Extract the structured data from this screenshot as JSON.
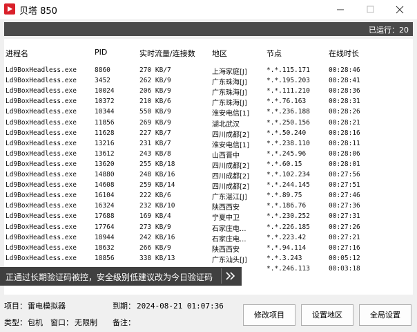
{
  "window": {
    "title": "贝塔 850"
  },
  "status": {
    "running": "已运行：20"
  },
  "table": {
    "headers": [
      "进程名",
      "PID",
      "实时流量/连接数",
      "地区",
      "节点",
      "在线时长"
    ],
    "rows": [
      {
        "name": "Ld9BoxHeadless.exe",
        "pid": "8860",
        "flow": "270 KB/7",
        "region": "上海家庭[J]",
        "node": "*.*.115.171",
        "time": "00:28:46"
      },
      {
        "name": "Ld9BoxHeadless.exe",
        "pid": "3452",
        "flow": "262 KB/9",
        "region": "广东珠海[J]",
        "node": "*.*.195.203",
        "time": "00:28:41"
      },
      {
        "name": "Ld9BoxHeadless.exe",
        "pid": "10024",
        "flow": "206 KB/9",
        "region": "广东珠海[J]",
        "node": "*.*.111.210",
        "time": "00:28:36"
      },
      {
        "name": "Ld9BoxHeadless.exe",
        "pid": "10372",
        "flow": "210 KB/6",
        "region": "广东珠海[J]",
        "node": "*.*.76.163",
        "time": "00:28:31"
      },
      {
        "name": "Ld9BoxHeadless.exe",
        "pid": "10344",
        "flow": "550 KB/9",
        "region": "淮安电信[1]",
        "node": "*.*.236.188",
        "time": "00:28:26"
      },
      {
        "name": "Ld9BoxHeadless.exe",
        "pid": "11856",
        "flow": "269 KB/9",
        "region": "湖北武汉",
        "node": "*.*.250.156",
        "time": "00:28:21"
      },
      {
        "name": "Ld9BoxHeadless.exe",
        "pid": "11628",
        "flow": "227 KB/7",
        "region": "四川成都[2]",
        "node": "*.*.50.240",
        "time": "00:28:16"
      },
      {
        "name": "Ld9BoxHeadless.exe",
        "pid": "13216",
        "flow": "231 KB/7",
        "region": "淮安电信[1]",
        "node": "*.*.238.110",
        "time": "00:28:11"
      },
      {
        "name": "Ld9BoxHeadless.exe",
        "pid": "13612",
        "flow": "243 KB/8",
        "region": "山西晋中",
        "node": "*.*.245.96",
        "time": "00:28:06"
      },
      {
        "name": "Ld9BoxHeadless.exe",
        "pid": "13620",
        "flow": "255 KB/18",
        "region": "四川成都[2]",
        "node": "*.*.60.15",
        "time": "00:28:01"
      },
      {
        "name": "Ld9BoxHeadless.exe",
        "pid": "14880",
        "flow": "248 KB/16",
        "region": "四川成都[2]",
        "node": "*.*.102.234",
        "time": "00:27:56"
      },
      {
        "name": "Ld9BoxHeadless.exe",
        "pid": "14608",
        "flow": "259 KB/14",
        "region": "四川成都[2]",
        "node": "*.*.244.145",
        "time": "00:27:51"
      },
      {
        "name": "Ld9BoxHeadless.exe",
        "pid": "16104",
        "flow": "222 KB/6",
        "region": "广东湛江[J]",
        "node": "*.*.89.75",
        "time": "00:27:46"
      },
      {
        "name": "Ld9BoxHeadless.exe",
        "pid": "16324",
        "flow": "232 KB/10",
        "region": "陕西西安",
        "node": "*.*.186.76",
        "time": "00:27:36"
      },
      {
        "name": "Ld9BoxHeadless.exe",
        "pid": "17688",
        "flow": "169 KB/4",
        "region": "宁夏中卫",
        "node": "*.*.230.252",
        "time": "00:27:31"
      },
      {
        "name": "Ld9BoxHeadless.exe",
        "pid": "17764",
        "flow": "273 KB/9",
        "region": "石家庄电...",
        "node": "*.*.226.185",
        "time": "00:27:26"
      },
      {
        "name": "Ld9BoxHeadless.exe",
        "pid": "18944",
        "flow": "242 KB/16",
        "region": "石家庄电...",
        "node": "*.*.223.42",
        "time": "00:27:21"
      },
      {
        "name": "Ld9BoxHeadless.exe",
        "pid": "18632",
        "flow": "266 KB/9",
        "region": "陕西西安",
        "node": "*.*.94.114",
        "time": "00:27:16"
      },
      {
        "name": "Ld9BoxHeadless.exe",
        "pid": "18856",
        "flow": "338 KB/13",
        "region": "广东汕头[J]",
        "node": "*.*.3.243",
        "time": "00:05:12"
      },
      {
        "node": "*.*.246.113",
        "time": "00:03:18"
      }
    ]
  },
  "toast": "正通过长期验证码被控，安全级别低建议改为今日验证码",
  "footer": {
    "project_label": "项目：",
    "project": "雷电模拟器",
    "expire_label": "到期：",
    "expire": "2024-08-21 01:07:36",
    "type_label": "类型：",
    "type": "包机",
    "window_label": "窗口：",
    "window": "无限制",
    "note_label": "备注："
  },
  "buttons": [
    "修改项目",
    "设置地区",
    "全局设置"
  ]
}
